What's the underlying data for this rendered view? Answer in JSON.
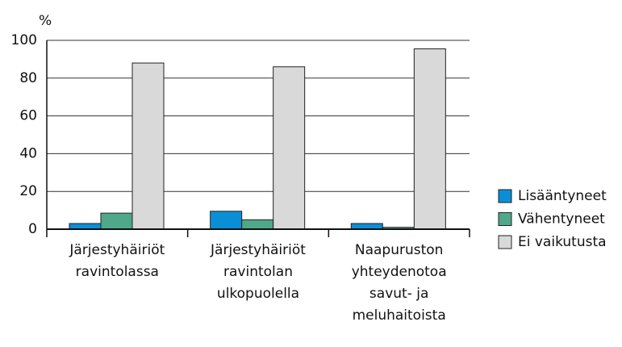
{
  "chart_data": {
    "type": "bar",
    "y_label": "%",
    "categories": [
      "Järjestyhäiriöt\nravintolassa",
      "Järjestyhäiriöt\nravintolan\nulkopuolella",
      "Naapuruston\nyhteydenotoa\nsavut- ja\nmeluhaitoista"
    ],
    "series": [
      {
        "name": "Lisääntyneet",
        "color": "#0a8fd6",
        "values": [
          3,
          9.5,
          3
        ]
      },
      {
        "name": "Vähentyneet",
        "color": "#4fa88a",
        "values": [
          8.5,
          5,
          1
        ]
      },
      {
        "name": "Ei vaikutusta",
        "color": "#d9d9d9",
        "values": [
          88,
          86,
          95.5
        ]
      }
    ],
    "ylim": [
      0,
      100
    ],
    "yticks": [
      0,
      20,
      40,
      60,
      80,
      100
    ],
    "grid": true,
    "legend": "right"
  }
}
